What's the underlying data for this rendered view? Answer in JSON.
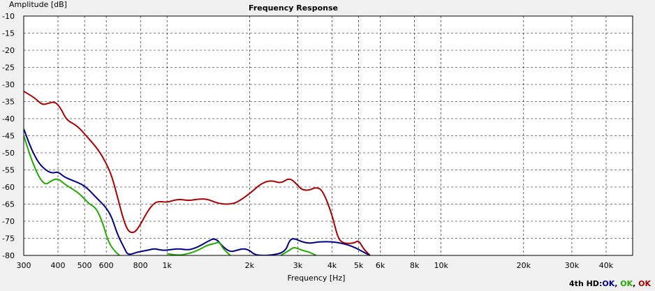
{
  "chart_data": {
    "type": "line",
    "title": "Frequency Response",
    "xlabel": "Frequency [Hz]",
    "ylabel": "Amplitude [dB]",
    "xscale": "log",
    "xlim": [
      300,
      50000
    ],
    "ylim": [
      -80,
      -10
    ],
    "grid": true,
    "x_ticks": [
      300,
      400,
      500,
      600,
      800,
      1000,
      2000,
      3000,
      4000,
      5000,
      6000,
      8000,
      10000,
      20000,
      30000,
      40000
    ],
    "x_tick_labels": [
      "300",
      "400",
      "500",
      "600",
      "800",
      "1k",
      "2k",
      "3k",
      "4k",
      "5k",
      "6k",
      "8k",
      "10k",
      "20k",
      "30k",
      "40k"
    ],
    "y_ticks": [
      -10,
      -15,
      -20,
      -25,
      -30,
      -35,
      -40,
      -45,
      -50,
      -55,
      -60,
      -65,
      -70,
      -75,
      -80
    ],
    "series": [
      {
        "color": "#aa0000",
        "points": [
          [
            300,
            -32
          ],
          [
            330,
            -34
          ],
          [
            350,
            -36
          ],
          [
            370,
            -35.5
          ],
          [
            390,
            -35
          ],
          [
            410,
            -37
          ],
          [
            430,
            -40.5
          ],
          [
            470,
            -42
          ],
          [
            520,
            -46
          ],
          [
            560,
            -49
          ],
          [
            600,
            -53
          ],
          [
            630,
            -57
          ],
          [
            660,
            -63
          ],
          [
            690,
            -69
          ],
          [
            720,
            -73
          ],
          [
            760,
            -73.5
          ],
          [
            800,
            -71
          ],
          [
            850,
            -67
          ],
          [
            900,
            -64.5
          ],
          [
            950,
            -64.2
          ],
          [
            1000,
            -64.5
          ],
          [
            1100,
            -63.5
          ],
          [
            1200,
            -64
          ],
          [
            1300,
            -63.5
          ],
          [
            1400,
            -63.5
          ],
          [
            1500,
            -64.5
          ],
          [
            1600,
            -65
          ],
          [
            1700,
            -65
          ],
          [
            1800,
            -64.5
          ],
          [
            2000,
            -62
          ],
          [
            2200,
            -59
          ],
          [
            2400,
            -58
          ],
          [
            2600,
            -59
          ],
          [
            2800,
            -57.2
          ],
          [
            3000,
            -59.5
          ],
          [
            3100,
            -60.8
          ],
          [
            3300,
            -61
          ],
          [
            3500,
            -60
          ],
          [
            3700,
            -61
          ],
          [
            4000,
            -68
          ],
          [
            4200,
            -75
          ],
          [
            4400,
            -76.5
          ],
          [
            4800,
            -76.5
          ],
          [
            5000,
            -75.5
          ],
          [
            5200,
            -78
          ],
          [
            5500,
            -80
          ]
        ]
      },
      {
        "color": "#000088",
        "points": [
          [
            300,
            -43
          ],
          [
            320,
            -49
          ],
          [
            340,
            -53
          ],
          [
            360,
            -55
          ],
          [
            380,
            -56
          ],
          [
            400,
            -55.5
          ],
          [
            420,
            -57
          ],
          [
            450,
            -58
          ],
          [
            500,
            -59.5
          ],
          [
            550,
            -63
          ],
          [
            600,
            -66
          ],
          [
            630,
            -69
          ],
          [
            660,
            -74
          ],
          [
            700,
            -78
          ],
          [
            720,
            -80
          ],
          [
            780,
            -79
          ],
          [
            850,
            -78.5
          ],
          [
            900,
            -78
          ],
          [
            950,
            -78.5
          ],
          [
            1000,
            -78.5
          ],
          [
            1100,
            -78
          ],
          [
            1200,
            -78.5
          ],
          [
            1300,
            -77.5
          ],
          [
            1400,
            -76
          ],
          [
            1500,
            -74.8
          ],
          [
            1600,
            -77.5
          ],
          [
            1700,
            -79
          ],
          [
            1800,
            -78.5
          ],
          [
            1900,
            -78
          ],
          [
            2000,
            -78.5
          ],
          [
            2100,
            -80
          ],
          [
            2400,
            -80
          ],
          [
            2700,
            -79
          ],
          [
            2800,
            -75.5
          ],
          [
            2900,
            -75
          ],
          [
            3100,
            -76
          ],
          [
            3300,
            -76.5
          ],
          [
            3600,
            -76
          ],
          [
            4000,
            -76
          ],
          [
            4400,
            -76.5
          ],
          [
            4800,
            -77.5
          ],
          [
            5200,
            -79
          ],
          [
            5500,
            -80
          ]
        ]
      },
      {
        "color": "#22aa00",
        "points": [
          [
            300,
            -45
          ],
          [
            320,
            -52
          ],
          [
            340,
            -57
          ],
          [
            360,
            -59.5
          ],
          [
            380,
            -58
          ],
          [
            400,
            -57.5
          ],
          [
            420,
            -59
          ],
          [
            450,
            -60.5
          ],
          [
            480,
            -62
          ],
          [
            520,
            -65
          ],
          [
            550,
            -66
          ],
          [
            580,
            -70
          ],
          [
            610,
            -76
          ],
          [
            640,
            -78.5
          ],
          [
            670,
            -80
          ]
        ]
      },
      {
        "color": "#22aa00",
        "points": [
          [
            1000,
            -79.5
          ],
          [
            1100,
            -80
          ],
          [
            1200,
            -79.5
          ],
          [
            1300,
            -78.5
          ],
          [
            1400,
            -77
          ],
          [
            1500,
            -76.5
          ],
          [
            1550,
            -76
          ],
          [
            1600,
            -78
          ],
          [
            1700,
            -80
          ]
        ]
      },
      {
        "color": "#22aa00",
        "points": [
          [
            2600,
            -80
          ],
          [
            2800,
            -78.5
          ],
          [
            2900,
            -77.5
          ],
          [
            3100,
            -78.5
          ],
          [
            3300,
            -79
          ],
          [
            3500,
            -80
          ]
        ]
      }
    ]
  },
  "status": {
    "prefix": "4th HD:",
    "items": [
      {
        "text": "OK",
        "color": "#000088"
      },
      {
        "text": ", ",
        "color": "#000000"
      },
      {
        "text": "OK",
        "color": "#22aa00"
      },
      {
        "text": ", ",
        "color": "#000000"
      },
      {
        "text": "OK",
        "color": "#aa0000"
      }
    ]
  }
}
